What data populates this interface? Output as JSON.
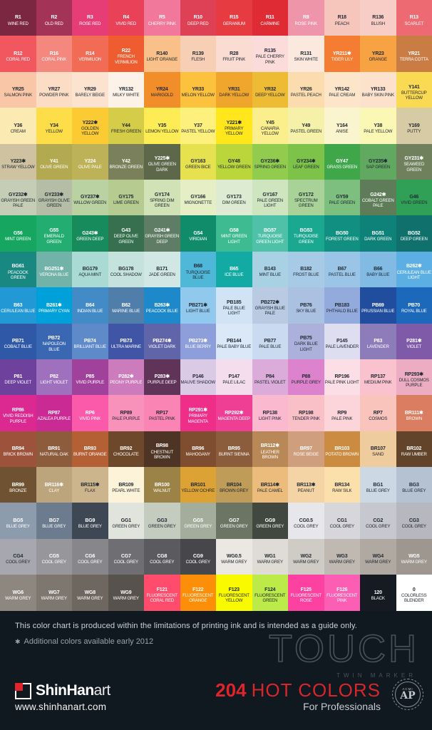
{
  "chart_data": {
    "type": "table",
    "title": "TOUCH TWIN MARKER 204 HOT COLORS",
    "columns": 12,
    "rows": 17,
    "cell_format": [
      "code",
      "name",
      "bg_hex",
      "text_color w=white d=dark"
    ],
    "cells": [
      [
        "R1",
        "WINE RED",
        "#7b2742",
        "w"
      ],
      [
        "R2",
        "OLD RED",
        "#a33457",
        "w"
      ],
      [
        "R3",
        "ROSE RED",
        "#e73d77",
        "w"
      ],
      [
        "R4",
        "VIVID RED",
        "#e94157",
        "w"
      ],
      [
        "R5",
        "CHERRY PINK",
        "#f2789b",
        "w"
      ],
      [
        "R10",
        "DEEP RED",
        "#de4055",
        "w"
      ],
      [
        "R15",
        "GERANIUM",
        "#e53b41",
        "w"
      ],
      [
        "R11",
        "CARMINE",
        "#df2b33",
        "w"
      ],
      [
        "R8",
        "ROSE PINK",
        "#ef95a9",
        "w"
      ],
      [
        "R18",
        "PEACH",
        "#f6c5bc",
        "d"
      ],
      [
        "R136",
        "BLUSH",
        "#f8cdc6",
        "d"
      ],
      [
        "R13",
        "SCARLET",
        "#ed6a73",
        "w"
      ],
      [
        "R12",
        "CORAL RED",
        "#f2575f",
        "w"
      ],
      [
        "R16",
        "CORAL PINK",
        "#f4887e",
        "w"
      ],
      [
        "R14",
        "VERMILION",
        "#f16b55",
        "w"
      ],
      [
        "R22",
        "FRENCH VERMILION",
        "#ee5c2f",
        "w"
      ],
      [
        "R140",
        "LIGHT ORANGE",
        "#f9c189",
        "d"
      ],
      [
        "R139",
        "FLESH",
        "#f7cfb5",
        "d"
      ],
      [
        "R28",
        "FRUIT PINK",
        "#fadcd3",
        "d"
      ],
      [
        "R135",
        "PALE CHERRY PINK",
        "#fbdcda",
        "d"
      ],
      [
        "R131",
        "SKIN WHITE",
        "#fbe9df",
        "d"
      ],
      [
        "YR211✱",
        "TIGER LILY",
        "#f57c33",
        "w"
      ],
      [
        "YR23",
        "ORANGE",
        "#f7a243",
        "d"
      ],
      [
        "YR21",
        "TERRA COTTA",
        "#ca7c45",
        "w"
      ],
      [
        "YR25",
        "SALMON PINK",
        "#f9c7a7",
        "d"
      ],
      [
        "YR27",
        "POWDER PINK",
        "#fbdcc5",
        "d"
      ],
      [
        "YR29",
        "BARELY BEIGE",
        "#fbe3d0",
        "d"
      ],
      [
        "YR132",
        "MILKY WHITE",
        "#fdf2e8",
        "d"
      ],
      [
        "YR24",
        "MARIGOLD",
        "#f18e2a",
        "d"
      ],
      [
        "YR33",
        "MELON YELLOW",
        "#fcc23e",
        "d"
      ],
      [
        "YR31",
        "DARK YELLOW",
        "#f0a52c",
        "d"
      ],
      [
        "YR32",
        "DEEP YELLOW",
        "#edbb34",
        "d"
      ],
      [
        "YR26",
        "PASTEL PEACH",
        "#fbdcae",
        "d"
      ],
      [
        "YR142",
        "PALE CREAM",
        "#fce5c9",
        "d"
      ],
      [
        "YR133",
        "BABY SKIN PINK",
        "#fce2cd",
        "d"
      ],
      [
        "Y141",
        "BUTTERCUP YELLOW",
        "#fada52",
        "d"
      ],
      [
        "Y36",
        "CREAM",
        "#fceab3",
        "d"
      ],
      [
        "Y34",
        "YELLOW",
        "#fdde49",
        "d"
      ],
      [
        "Y222✱",
        "GOLDEN YELLOW",
        "#fcca33",
        "d"
      ],
      [
        "Y44",
        "FRESH GREEN",
        "#d5cc48",
        "d"
      ],
      [
        "Y35",
        "LEMON YELLOW",
        "#fdec53",
        "d"
      ],
      [
        "Y37",
        "PASTEL YELLOW",
        "#fdf07d",
        "d"
      ],
      [
        "Y221✱",
        "PRIMARY YELLOW",
        "#ffe71b",
        "d"
      ],
      [
        "Y45",
        "CANARIA YELLOW",
        "#fbee8c",
        "d"
      ],
      [
        "Y49",
        "PASTEL GREEN",
        "#f5f1a9",
        "d"
      ],
      [
        "Y164",
        "ANISE",
        "#faf5ce",
        "d"
      ],
      [
        "Y38",
        "PALE YELLOW",
        "#fbf7b5",
        "d"
      ],
      [
        "Y169",
        "PUTTY",
        "#d7cba5",
        "d"
      ],
      [
        "Y223✱",
        "STRAW YELLOW",
        "#cec2a1",
        "d"
      ],
      [
        "Y41",
        "OLIVE GREEN",
        "#b3a950",
        "w"
      ],
      [
        "Y224",
        "OLIVE PALE",
        "#bdb257",
        "w"
      ],
      [
        "Y42",
        "BRONZE GREEN",
        "#7a815a",
        "w"
      ],
      [
        "Y225✱",
        "OLIVE GREEN DARK",
        "#5d6749",
        "w"
      ],
      [
        "GY163",
        "GREEN BICE",
        "#e6e14f",
        "d"
      ],
      [
        "GY48",
        "YELLOW GREEN",
        "#bad63b",
        "d"
      ],
      [
        "GY236✱",
        "SPRING GREEN",
        "#91cc4f",
        "d"
      ],
      [
        "GY234✱",
        "LEAF GREEN",
        "#7ec349",
        "d"
      ],
      [
        "GY47",
        "GRASS GREEN",
        "#3fa649",
        "w"
      ],
      [
        "GY235✱",
        "SAP GREEN",
        "#61a960",
        "d"
      ],
      [
        "GY231✱",
        "SEAWEED GREEN",
        "#6e805c",
        "w"
      ],
      [
        "GY232✱",
        "GRAYISH GREEN PALE",
        "#c5cdb6",
        "d"
      ],
      [
        "GY233✱",
        "GRAYISH OLIVE GREEN",
        "#b5bda6",
        "d"
      ],
      [
        "GY237✱",
        "WILLOW GREEN",
        "#bad1a1",
        "d"
      ],
      [
        "GY175",
        "LIME GREEN",
        "#b5cb8f",
        "d"
      ],
      [
        "GY174",
        "SPRING DIM GREEN",
        "#d1e2b6",
        "d"
      ],
      [
        "GY166",
        "MIGNONETTE",
        "#e6eec6",
        "d"
      ],
      [
        "GY173",
        "DIM GREEN",
        "#ddebd2",
        "d"
      ],
      [
        "GY167",
        "PALE GREEN LIGHT",
        "#cfe5bf",
        "d"
      ],
      [
        "GY172",
        "SPECTRUM GREEN",
        "#a8d298",
        "d"
      ],
      [
        "GY59",
        "PALE GREEN",
        "#7dbf7e",
        "d"
      ],
      [
        "G242✱",
        "COBALT GREEN PALE",
        "#5e7c57",
        "w"
      ],
      [
        "G46",
        "VIVID GREEN",
        "#30a056",
        "d"
      ],
      [
        "G56",
        "MINT GREEN",
        "#16a660",
        "w"
      ],
      [
        "G55",
        "EMERALD GREEN",
        "#23ad70",
        "w"
      ],
      [
        "G243✱",
        "GREEN DEEP",
        "#188b5d",
        "w"
      ],
      [
        "G43",
        "DEEP OLIVE GREEN",
        "#36704f",
        "w"
      ],
      [
        "G241✱",
        "GRAYISH GREEN DEEP",
        "#5f7d65",
        "w"
      ],
      [
        "G54",
        "VIRIDIAN",
        "#118c6a",
        "w"
      ],
      [
        "G58",
        "MINT GREEN LIGHT",
        "#3fbb91",
        "w"
      ],
      [
        "BG57",
        "TURQUOISE GREEN LIGHT",
        "#4fc1a9",
        "w"
      ],
      [
        "BG53",
        "TURQUOISE GREEN",
        "#1ba890",
        "w"
      ],
      [
        "BG50",
        "FOREST GREEN",
        "#119082",
        "w"
      ],
      [
        "BG51",
        "DARK GREEN",
        "#0e8178",
        "w"
      ],
      [
        "BG52",
        "DEEP GREEN",
        "#10716c",
        "w"
      ],
      [
        "BG61",
        "PEACOCK GREEN",
        "#198880",
        "w"
      ],
      [
        "BG251✱",
        "VERONA BLUE",
        "#71b2a9",
        "w"
      ],
      [
        "BG179",
        "AQUA MINT",
        "#aadad4",
        "d"
      ],
      [
        "BG178",
        "COOL SHADOW",
        "#c6e2dc",
        "d"
      ],
      [
        "B171",
        "JADE GREEN",
        "#d1e7e4",
        "d"
      ],
      [
        "B68",
        "TURQUOISE BLUE",
        "#4fb7d7",
        "d"
      ],
      [
        "B65",
        "ICE BLUE",
        "#13aaa4",
        "w"
      ],
      [
        "B143",
        "MINT BLUE",
        "#a9d1e4",
        "d"
      ],
      [
        "B182",
        "FROST BLUE",
        "#a7cae6",
        "d"
      ],
      [
        "B67",
        "PASTEL BLUE",
        "#9bc5e6",
        "d"
      ],
      [
        "B66",
        "BABY BLUE",
        "#81bae2",
        "d"
      ],
      [
        "B262✱",
        "CERULEAN BLUE LIGHT",
        "#5cafe2",
        "w"
      ],
      [
        "B63",
        "CERULEAN BLUE",
        "#2299d5",
        "w"
      ],
      [
        "B261✱",
        "PRIMARY CYAN",
        "#00a1da",
        "w"
      ],
      [
        "B64",
        "INDIAN BLUE",
        "#438bc6",
        "w"
      ],
      [
        "B62",
        "MARINE BLUE",
        "#507eaa",
        "w"
      ],
      [
        "B263✱",
        "PEACOCK BLUE",
        "#1d88ca",
        "w"
      ],
      [
        "PB271✱",
        "LIGHT BLUE",
        "#91c8ed",
        "d"
      ],
      [
        "PB185",
        "PALE BLUE LIGHT",
        "#d1e4f6",
        "d"
      ],
      [
        "PB272✱",
        "GRAYISH BLUE PALE",
        "#bacae2",
        "d"
      ],
      [
        "PB76",
        "SKY BLUE",
        "#aac1e2",
        "d"
      ],
      [
        "PB183",
        "PHTHALO BLUE",
        "#93abdc",
        "d"
      ],
      [
        "PB69",
        "PRUSSIAN BLUE",
        "#204d9d",
        "w"
      ],
      [
        "PB70",
        "ROYAL BLUE",
        "#1c69bc",
        "w"
      ],
      [
        "PB71",
        "COBALT BLUE",
        "#2f59a7",
        "w"
      ],
      [
        "PB72",
        "NAPOLEON BLUE",
        "#3a67b2",
        "w"
      ],
      [
        "PB74",
        "BRILLIANT BLUE",
        "#5f8aca",
        "w"
      ],
      [
        "PB73",
        "ULTRA MARINE",
        "#4055a5",
        "w"
      ],
      [
        "PB274✱",
        "VIOLET DARK",
        "#6065aa",
        "w"
      ],
      [
        "PB273✱",
        "BLUE BERRY",
        "#8e9eda",
        "w"
      ],
      [
        "PB144",
        "PALE BABY BLUE",
        "#dae8f8",
        "d"
      ],
      [
        "PB77",
        "PALE BLUE",
        "#cadaf0",
        "d"
      ],
      [
        "PB75",
        "DARK BLUE LIGHT",
        "#abb1db",
        "d"
      ],
      [
        "P145",
        "PALE LAVENDER",
        "#dedef0",
        "d"
      ],
      [
        "P83",
        "LAVENDER",
        "#8c7cba",
        "w"
      ],
      [
        "P281✱",
        "VIOLET",
        "#7f5aa8",
        "w"
      ],
      [
        "P81",
        "DEEP VIOLET",
        "#6e419d",
        "w"
      ],
      [
        "P82",
        "LIGHT VIOLET",
        "#9e70be",
        "w"
      ],
      [
        "P85",
        "VIVID PURPLE",
        "#a0419c",
        "w"
      ],
      [
        "P282✱",
        "PEONY PURPLE",
        "#cc7cbc",
        "w"
      ],
      [
        "P283✱",
        "PURPLE DEEP",
        "#603359",
        "w"
      ],
      [
        "P146",
        "MAUVE SHADOW",
        "#dacae6",
        "d"
      ],
      [
        "P147",
        "PALE LILAC",
        "#f4deed",
        "d"
      ],
      [
        "P84",
        "PASTEL VIOLET",
        "#dbacda",
        "d"
      ],
      [
        "P88",
        "PURPLE GREY",
        "#dd82cd",
        "d"
      ],
      [
        "RP196",
        "PALE PINK LIGHT",
        "#fbdee6",
        "d"
      ],
      [
        "RP137",
        "MEDIUM PINK",
        "#f9c2ce",
        "d"
      ],
      [
        "RP293✱",
        "DULL COSMOS PURPLE",
        "#ecacc1",
        "d"
      ],
      [
        "RP86",
        "VIVID REDDISH PURPLE",
        "#dc2992",
        "w"
      ],
      [
        "RP87",
        "AZALEA PURPLE",
        "#ca2a94",
        "w"
      ],
      [
        "RP6",
        "VIVID PINK",
        "#fb5aaa",
        "w"
      ],
      [
        "RP89",
        "PALE PURPLE",
        "#f992ba",
        "d"
      ],
      [
        "RP17",
        "PASTEL PINK",
        "#fa84b4",
        "d"
      ],
      [
        "RP291✱",
        "PRIMARY MAGENTA",
        "#ef2e8a",
        "w"
      ],
      [
        "RP292✱",
        "MAGENTA DEEP",
        "#ee3f94",
        "w"
      ],
      [
        "RP138",
        "LIGHT PINK",
        "#fab9cf",
        "d"
      ],
      [
        "RP198",
        "TENDER PINK",
        "#fac0c8",
        "d"
      ],
      [
        "RP9",
        "PALE PINK",
        "#fcd5da",
        "d"
      ],
      [
        "RP7",
        "COSMOS",
        "#f9c4bc",
        "d"
      ],
      [
        "BR111✱",
        "BROWN",
        "#da7d60",
        "w"
      ],
      [
        "BR94",
        "BRICK BROWN",
        "#9d523c",
        "w"
      ],
      [
        "BR91",
        "NATURAL OAK",
        "#8d5c3c",
        "w"
      ],
      [
        "BR93",
        "BURNT ORANGE",
        "#b46034",
        "w"
      ],
      [
        "BR92",
        "CHOCOLATE",
        "#6e482a",
        "w"
      ],
      [
        "BR98",
        "CHESTNUT BROWN",
        "#4e3424",
        "w"
      ],
      [
        "BR96",
        "MAHOGANY",
        "#7f4d2f",
        "w"
      ],
      [
        "BR95",
        "BURNT SIENNA",
        "#8b5d3d",
        "w"
      ],
      [
        "BR112✱",
        "LEATHER BROWN",
        "#b98857",
        "w"
      ],
      [
        "BR97",
        "ROSE BEIGE",
        "#cf9e7c",
        "w"
      ],
      [
        "BR103",
        "POTATO BROWN",
        "#cb8c42",
        "w"
      ],
      [
        "BR107",
        "SAND",
        "#efcc9e",
        "d"
      ],
      [
        "BR102",
        "RAW UMBER",
        "#62442a",
        "w"
      ],
      [
        "BR99",
        "BRONZE",
        "#6e5232",
        "w"
      ],
      [
        "BR116✱",
        "CLAY",
        "#bca47c",
        "w"
      ],
      [
        "BR115✱",
        "FLAX",
        "#ccb48c",
        "d"
      ],
      [
        "BR109",
        "PEARL WHITE",
        "#fdf3d8",
        "d"
      ],
      [
        "BR100",
        "WALNUT",
        "#9b8246",
        "w"
      ],
      [
        "BR101",
        "YELLOW OCHRE",
        "#dda234",
        "d"
      ],
      [
        "BR104",
        "BROWN GREY",
        "#bf9c58",
        "d"
      ],
      [
        "BR114✱",
        "PALE CAMEL",
        "#ecbc7c",
        "d"
      ],
      [
        "BR113✱",
        "PEANUT",
        "#f4d4a4",
        "d"
      ],
      [
        "BR134",
        "RAW SILK",
        "#fbe0ac",
        "d"
      ],
      [
        "BG1",
        "BLUE GREY",
        "#ccd8e4",
        "d"
      ],
      [
        "BG3",
        "BLUE GREY",
        "#b4c2d2",
        "d"
      ],
      [
        "BG5",
        "BLUE GREY",
        "#8c9cac",
        "w"
      ],
      [
        "BG7",
        "BLUE GREY",
        "#6c7c8e",
        "w"
      ],
      [
        "BG9",
        "BLUE GREY",
        "#3e4854",
        "w"
      ],
      [
        "GG1",
        "GREEN GREY",
        "#e0e4dc",
        "d"
      ],
      [
        "GG3",
        "GREEN GREY",
        "#c4ccc0",
        "d"
      ],
      [
        "GG5",
        "GREEN GREY",
        "#a4ac9c",
        "w"
      ],
      [
        "GG7",
        "GREEN GREY",
        "#6c7464",
        "w"
      ],
      [
        "GG9",
        "GREEN GREY",
        "#404840",
        "w"
      ],
      [
        "CG0.5",
        "COOL GREY",
        "#e7e7eb",
        "d"
      ],
      [
        "CG1",
        "COOL GREY",
        "#d7d7db",
        "d"
      ],
      [
        "CG2",
        "COOL GREY",
        "#c7c7cf",
        "d"
      ],
      [
        "CG3",
        "COOL GREY",
        "#b7b7bf",
        "d"
      ],
      [
        "CG4",
        "COOL GREY",
        "#a7a7af",
        "d"
      ],
      [
        "CG5",
        "COOL GREY",
        "#97979b",
        "w"
      ],
      [
        "CG6",
        "COOL GREY",
        "#87878b",
        "w"
      ],
      [
        "CG7",
        "COOL GREY",
        "#6f6f73",
        "w"
      ],
      [
        "CG8",
        "COOL GREY",
        "#5b5b5f",
        "w"
      ],
      [
        "CG9",
        "COOL GREY",
        "#47474b",
        "w"
      ],
      [
        "WG0.5",
        "WARM GREY",
        "#ebe7e3",
        "d"
      ],
      [
        "WG1",
        "WARM GREY",
        "#dfdbd5",
        "d"
      ],
      [
        "WG2",
        "WARM GREY",
        "#cfcbc5",
        "d"
      ],
      [
        "WG3",
        "WARM GREY",
        "#bfb9b1",
        "d"
      ],
      [
        "WG4",
        "WARM GREY",
        "#afa9a1",
        "d"
      ],
      [
        "WG5",
        "WARM GREY",
        "#9d978f",
        "w"
      ],
      [
        "WG6",
        "WARM GREY",
        "#8d877f",
        "w"
      ],
      [
        "WG7",
        "WARM GREY",
        "#7d776f",
        "w"
      ],
      [
        "WG8",
        "WARM GREY",
        "#6d675f",
        "w"
      ],
      [
        "WG9",
        "WARM GREY",
        "#58524c",
        "w"
      ],
      [
        "F121",
        "FLUORESCENT CORAL RED",
        "#ff4b6c",
        "w"
      ],
      [
        "F122",
        "FLUORESCENT ORANGE",
        "#fd8e08",
        "w"
      ],
      [
        "F123",
        "FLUORESCENT YELLOW",
        "#f9f900",
        "d"
      ],
      [
        "F124",
        "FLUORESCENT GREEN",
        "#bcea49",
        "d"
      ],
      [
        "F125",
        "FLUORESCENT ROSE",
        "#fc41a0",
        "w"
      ],
      [
        "F126",
        "FLUORESCENT PINK",
        "#fc5eb4",
        "w"
      ],
      [
        "120",
        "BLACK",
        "#161a23",
        "w"
      ],
      [
        "0",
        "COLORLESS BLENDER",
        "#ffffff",
        "d"
      ]
    ]
  },
  "footer": {
    "disclaimer": "This color chart is produced within the limitations of printing ink and is intended as a guide only.",
    "note_symbol": "✱",
    "note_text": "Additional colors available early 2012",
    "brand_bold": "ShinHan",
    "brand_light": "art",
    "website": "www.shinhanart.com",
    "logo_title": "TOUCH",
    "logo_subtitle": "TWIN MARKER",
    "colors_count": "204",
    "colors_label": "HOT COLORS",
    "colors_sub": "For Professionals",
    "seal_org": "ACMI",
    "seal_text": "AP",
    "accent_red": "#e0242b",
    "footer_bg": "#101820"
  }
}
